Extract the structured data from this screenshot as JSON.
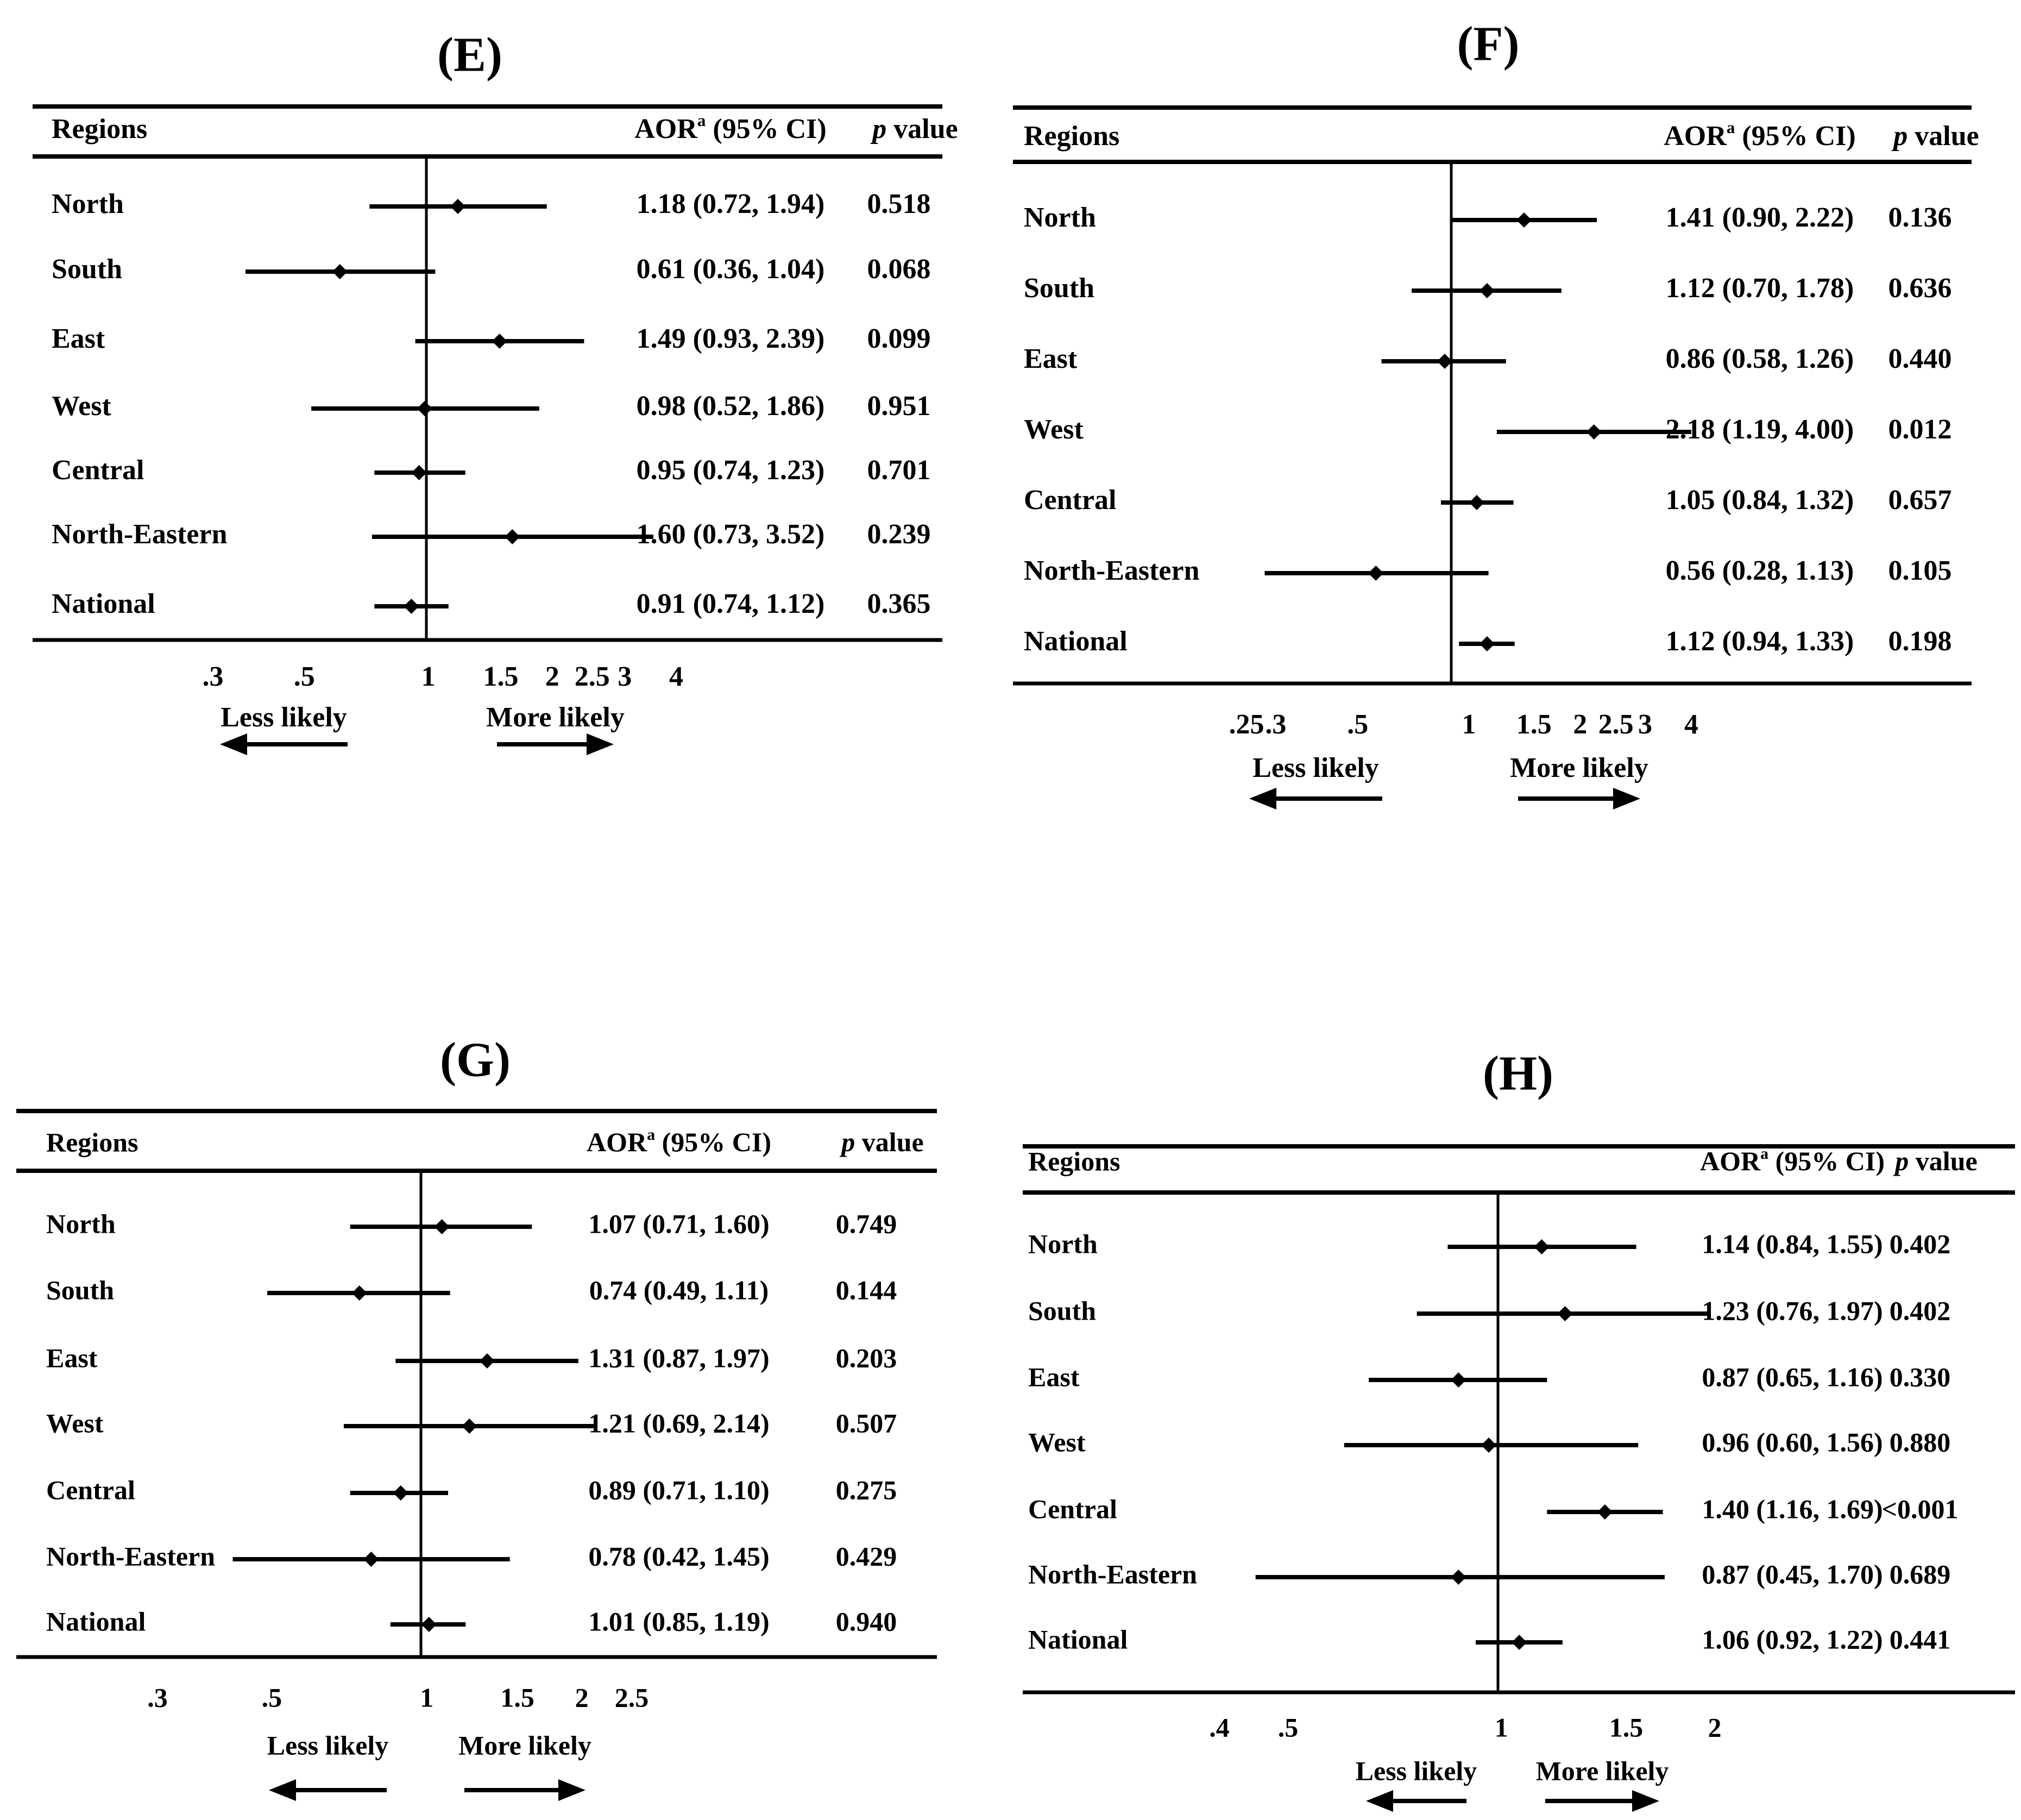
{
  "chart_data": [
    {
      "type": "forest",
      "panel_label": "(E)",
      "header": {
        "col_label": "Regions",
        "estimate": "AOR",
        "estimate_sup": "a",
        "ci": "(95% CI)",
        "p_italic": "p",
        "p_rest": " value"
      },
      "axis": {
        "scale": "log",
        "ticks": [
          0.3,
          0.5,
          1,
          1.5,
          2,
          2.5,
          3,
          4
        ],
        "tick_labels": [
          ".3",
          ".5",
          "1",
          "1.5",
          "2",
          "2.5",
          "3",
          "4"
        ],
        "reference_line": 1
      },
      "direction_labels": {
        "left": "Less likely",
        "right": "More likely"
      },
      "rows": [
        {
          "label": "North",
          "or": 1.18,
          "lo": 0.72,
          "hi": 1.94,
          "ci_text": "1.18 (0.72, 1.94)",
          "p": "0.518"
        },
        {
          "label": "South",
          "or": 0.61,
          "lo": 0.36,
          "hi": 1.04,
          "ci_text": "0.61 (0.36, 1.04)",
          "p": "0.068"
        },
        {
          "label": "East",
          "or": 1.49,
          "lo": 0.93,
          "hi": 2.39,
          "ci_text": "1.49 (0.93, 2.39)",
          "p": "0.099"
        },
        {
          "label": "West",
          "or": 0.98,
          "lo": 0.52,
          "hi": 1.86,
          "ci_text": "0.98 (0.52, 1.86)",
          "p": "0.951"
        },
        {
          "label": "Central",
          "or": 0.95,
          "lo": 0.74,
          "hi": 1.23,
          "ci_text": "0.95 (0.74, 1.23)",
          "p": "0.701"
        },
        {
          "label": "North-Eastern",
          "or": 1.6,
          "lo": 0.73,
          "hi": 3.52,
          "ci_text": "1.60 (0.73, 3.52)",
          "p": "0.239"
        },
        {
          "label": "National",
          "or": 0.91,
          "lo": 0.74,
          "hi": 1.12,
          "ci_text": "0.91 (0.74, 1.12)",
          "p": "0.365"
        }
      ]
    },
    {
      "type": "forest",
      "panel_label": "(F)",
      "header": {
        "col_label": "Regions",
        "estimate": "AOR",
        "estimate_sup": "a",
        "ci": "(95% CI)",
        "p_italic": "p",
        "p_rest": " value"
      },
      "axis": {
        "scale": "log",
        "ticks": [
          0.25,
          0.3,
          0.5,
          1,
          1.5,
          2,
          2.5,
          3,
          4
        ],
        "tick_labels": [
          ".25",
          ".3",
          ".5",
          "1",
          "1.5",
          "2",
          "2.5",
          "3",
          "4"
        ],
        "reference_line": 1
      },
      "direction_labels": {
        "left": "Less likely",
        "right": "More likely"
      },
      "rows": [
        {
          "label": "North",
          "or": 1.41,
          "lo": 0.9,
          "hi": 2.22,
          "ci_text": "1.41 (0.90, 2.22)",
          "p": "0.136"
        },
        {
          "label": "South",
          "or": 1.12,
          "lo": 0.7,
          "hi": 1.78,
          "ci_text": "1.12 (0.70, 1.78)",
          "p": "0.636"
        },
        {
          "label": "East",
          "or": 0.86,
          "lo": 0.58,
          "hi": 1.26,
          "ci_text": "0.86 (0.58, 1.26)",
          "p": "0.440"
        },
        {
          "label": "West",
          "or": 2.18,
          "lo": 1.19,
          "hi": 4.0,
          "ci_text": "2.18 (1.19, 4.00)",
          "p": "0.012"
        },
        {
          "label": "Central",
          "or": 1.05,
          "lo": 0.84,
          "hi": 1.32,
          "ci_text": "1.05 (0.84, 1.32)",
          "p": "0.657"
        },
        {
          "label": "North-Eastern",
          "or": 0.56,
          "lo": 0.28,
          "hi": 1.13,
          "ci_text": "0.56 (0.28, 1.13)",
          "p": "0.105"
        },
        {
          "label": "National",
          "or": 1.12,
          "lo": 0.94,
          "hi": 1.33,
          "ci_text": "1.12 (0.94, 1.33)",
          "p": "0.198"
        }
      ]
    },
    {
      "type": "forest",
      "panel_label": "(G)",
      "header": {
        "col_label": "Regions",
        "estimate": "AOR",
        "estimate_sup": "a",
        "ci": "(95% CI)",
        "p_italic": "p",
        "p_rest": " value"
      },
      "axis": {
        "scale": "log",
        "ticks": [
          0.3,
          0.5,
          1,
          1.5,
          2,
          2.5
        ],
        "tick_labels": [
          ".3",
          ".5",
          "1",
          "1.5",
          "2",
          "2.5"
        ],
        "reference_line": 1
      },
      "direction_labels": {
        "left": "Less likely",
        "right": "More likely"
      },
      "rows": [
        {
          "label": "North",
          "or": 1.07,
          "lo": 0.71,
          "hi": 1.6,
          "ci_text": "1.07 (0.71, 1.60)",
          "p": "0.749"
        },
        {
          "label": "South",
          "or": 0.74,
          "lo": 0.49,
          "hi": 1.11,
          "ci_text": "0.74 (0.49, 1.11)",
          "p": "0.144"
        },
        {
          "label": "East",
          "or": 1.31,
          "lo": 0.87,
          "hi": 1.97,
          "ci_text": "1.31 (0.87, 1.97)",
          "p": "0.203"
        },
        {
          "label": "West",
          "or": 1.21,
          "lo": 0.69,
          "hi": 2.14,
          "ci_text": "1.21 (0.69, 2.14)",
          "p": "0.507"
        },
        {
          "label": "Central",
          "or": 0.89,
          "lo": 0.71,
          "hi": 1.1,
          "ci_text": "0.89 (0.71, 1.10)",
          "p": "0.275"
        },
        {
          "label": "North-Eastern",
          "or": 0.78,
          "lo": 0.42,
          "hi": 1.45,
          "ci_text": "0.78 (0.42, 1.45)",
          "p": "0.429"
        },
        {
          "label": "National",
          "or": 1.01,
          "lo": 0.85,
          "hi": 1.19,
          "ci_text": "1.01 (0.85, 1.19)",
          "p": "0.940"
        }
      ]
    },
    {
      "type": "forest",
      "panel_label": "(H)",
      "header": {
        "col_label": "Regions",
        "estimate": "AOR",
        "estimate_sup": "a",
        "ci": "(95% CI)",
        "p_italic": "p",
        "p_rest": " value"
      },
      "axis": {
        "scale": "log",
        "ticks": [
          0.4,
          0.5,
          1,
          1.5,
          2
        ],
        "tick_labels": [
          ".4",
          ".5",
          "1",
          "1.5",
          "2"
        ],
        "reference_line": 1
      },
      "direction_labels": {
        "left": "Less likely",
        "right": "More likely"
      },
      "rows": [
        {
          "label": "North",
          "or": 1.14,
          "lo": 0.84,
          "hi": 1.55,
          "ci_text": "1.14 (0.84, 1.55)",
          "p": "0.402"
        },
        {
          "label": "South",
          "or": 1.23,
          "lo": 0.76,
          "hi": 1.97,
          "ci_text": "1.23 (0.76, 1.97)",
          "p": "0.402"
        },
        {
          "label": "East",
          "or": 0.87,
          "lo": 0.65,
          "hi": 1.16,
          "ci_text": "0.87 (0.65, 1.16)",
          "p": "0.330"
        },
        {
          "label": "West",
          "or": 0.96,
          "lo": 0.6,
          "hi": 1.56,
          "ci_text": "0.96 (0.60, 1.56)",
          "p": "0.880"
        },
        {
          "label": "Central",
          "or": 1.4,
          "lo": 1.16,
          "hi": 1.69,
          "ci_text": "1.40 (1.16, 1.69)",
          "p": "<0.001"
        },
        {
          "label": "North-Eastern",
          "or": 0.87,
          "lo": 0.45,
          "hi": 1.7,
          "ci_text": "0.87 (0.45, 1.70)",
          "p": "0.689"
        },
        {
          "label": "National",
          "or": 1.06,
          "lo": 0.92,
          "hi": 1.22,
          "ci_text": "1.06 (0.92, 1.22)",
          "p": "0.441"
        }
      ]
    }
  ]
}
